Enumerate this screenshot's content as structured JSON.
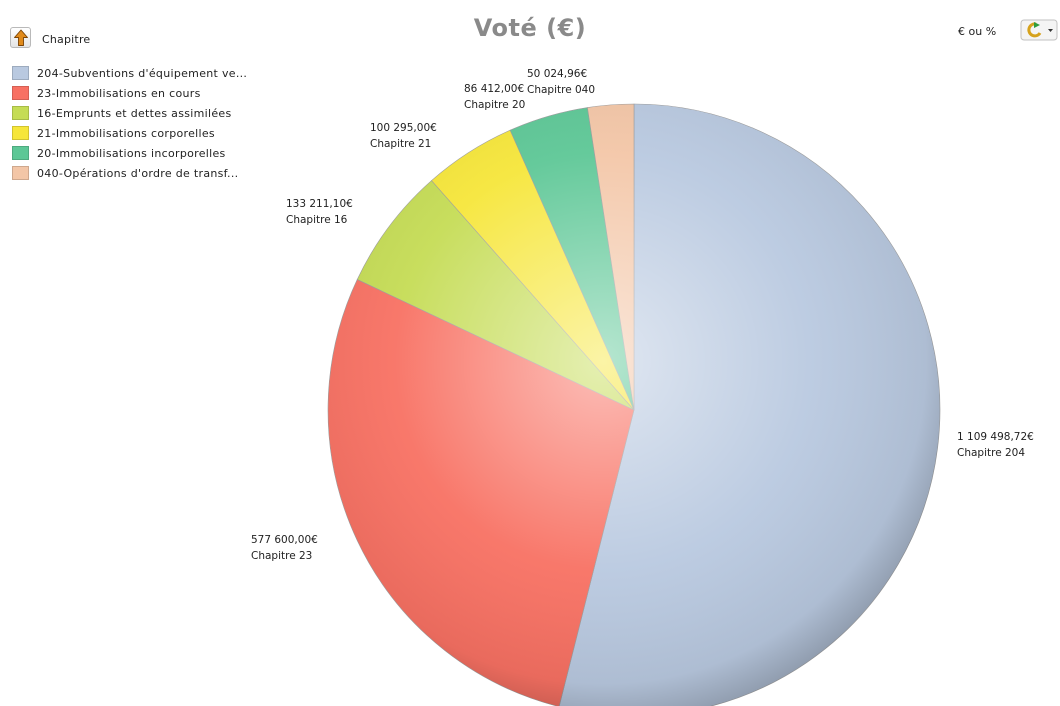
{
  "header": {
    "breadcrumb_label": "Chapitre",
    "unit_toggle_label": "€ ou %",
    "up_icon": "up-arrow-icon",
    "refresh_icon": "refresh-icon"
  },
  "chart_data": {
    "type": "pie",
    "title": "Voté (€)",
    "legend_position": "top-left",
    "slices": [
      {
        "legend": "204-Subventions d'équipement ve...",
        "value": 1109498.72,
        "value_label": "1 109 498,72€",
        "category": "Chapitre 204",
        "color": "#b9c9e0"
      },
      {
        "legend": "23-Immobilisations en cours",
        "value": 577600.0,
        "value_label": "577 600,00€",
        "category": "Chapitre 23",
        "color": "#f87163"
      },
      {
        "legend": "16-Emprunts et dettes assimilées",
        "value": 133211.1,
        "value_label": "133 211,10€",
        "category": "Chapitre 16",
        "color": "#c5dc55"
      },
      {
        "legend": "21-Immobilisations corporelles",
        "value": 100295.0,
        "value_label": "100 295,00€",
        "category": "Chapitre 21",
        "color": "#f6e63a"
      },
      {
        "legend": "20-Immobilisations incorporelles",
        "value": 86412.0,
        "value_label": "86 412,00€",
        "category": "Chapitre 20",
        "color": "#5dc796"
      },
      {
        "legend": "040-Opérations d'ordre de transf...",
        "value": 50024.96,
        "value_label": "50 024,96€",
        "category": "Chapitre 040",
        "color": "#f3c6a7"
      }
    ]
  }
}
